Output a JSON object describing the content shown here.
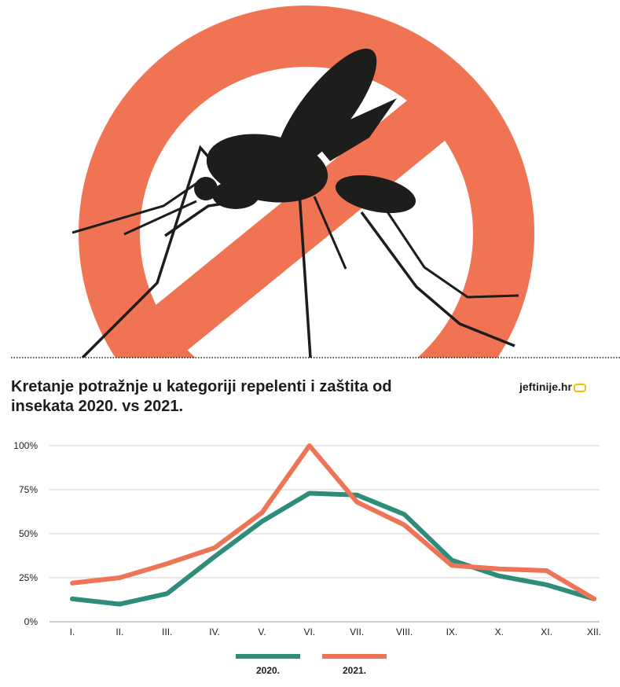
{
  "header": {
    "title": "Kretanje potražnje u kategoriji repelenti i zaštita od insekata 2020. vs 2021.",
    "logo_text": "jeftinije.hr",
    "logo_accent_color": "#f2c200"
  },
  "hero": {
    "icon": "mosquito-prohibited-sign-icon",
    "sign_color": "#f07353",
    "insect_color": "#1d1d1b"
  },
  "chart_data": {
    "type": "line",
    "categories": [
      "I.",
      "II.",
      "III.",
      "IV.",
      "V.",
      "VI.",
      "VII.",
      "VIII.",
      "IX.",
      "X.",
      "XI.",
      "XII."
    ],
    "y_tick_labels": [
      "0%",
      "25%",
      "50%",
      "75%",
      "100%"
    ],
    "ylim": [
      0,
      100
    ],
    "grid": true,
    "legend_position": "bottom",
    "series": [
      {
        "name": "2020.",
        "color": "#2e8c7a",
        "values": [
          13,
          10,
          16,
          37,
          57,
          73,
          72,
          61,
          35,
          26,
          21,
          13
        ]
      },
      {
        "name": "2021.",
        "color": "#ee7457",
        "values": [
          22,
          25,
          33,
          42,
          62,
          100,
          68,
          55,
          32,
          30,
          29,
          13
        ]
      }
    ]
  }
}
